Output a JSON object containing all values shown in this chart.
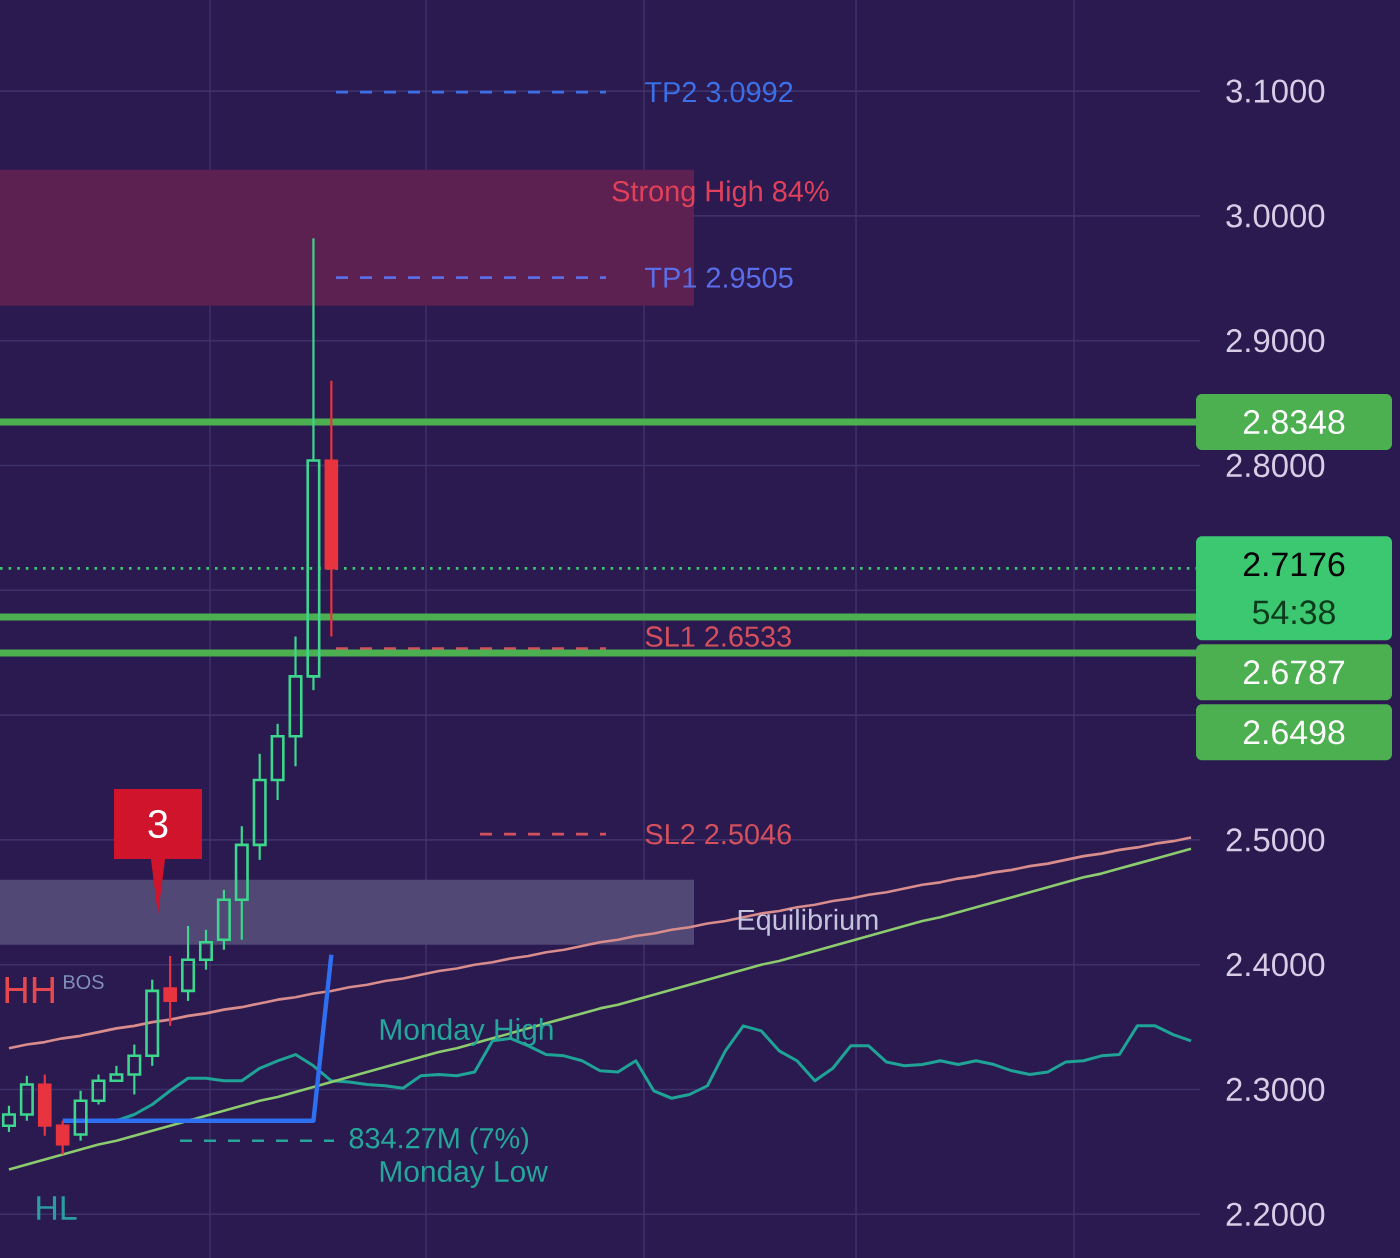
{
  "chart_data": {
    "type": "candlestick",
    "categories": [
      null,
      null,
      null,
      null,
      null,
      null,
      null,
      null,
      null,
      null,
      null,
      null,
      null,
      null,
      null,
      null,
      null,
      null,
      null,
      null,
      null,
      null,
      null,
      null,
      null,
      null,
      null,
      null,
      null,
      null,
      null,
      null,
      null,
      null,
      null,
      null,
      null,
      null,
      null,
      null,
      null,
      null,
      null,
      null,
      null,
      null,
      null,
      null,
      null,
      null,
      null,
      null,
      null,
      null,
      null,
      null,
      null,
      null,
      null,
      null,
      null,
      null,
      null,
      null,
      null,
      null,
      null
    ],
    "ohlc": [
      [
        2.271,
        2.287,
        2.266,
        2.28
      ],
      [
        2.28,
        2.311,
        2.275,
        2.304
      ],
      [
        2.304,
        2.312,
        2.263,
        2.271
      ],
      [
        2.271,
        2.275,
        2.248,
        2.256
      ],
      [
        2.264,
        2.299,
        2.259,
        2.291
      ],
      [
        2.291,
        2.312,
        2.288,
        2.307
      ],
      [
        2.307,
        2.319,
        2.306,
        2.312
      ],
      [
        2.312,
        2.336,
        2.296,
        2.327
      ],
      [
        2.327,
        2.388,
        2.319,
        2.379
      ],
      [
        2.381,
        2.407,
        2.351,
        2.371
      ],
      [
        2.379,
        2.431,
        2.371,
        2.404
      ],
      [
        2.404,
        2.428,
        2.396,
        2.418
      ],
      [
        2.42,
        2.46,
        2.412,
        2.452
      ],
      [
        2.452,
        2.511,
        2.42,
        2.496
      ],
      [
        2.496,
        2.569,
        2.484,
        2.548
      ],
      [
        2.548,
        2.593,
        2.532,
        2.583
      ],
      [
        2.583,
        2.663,
        2.559,
        2.631
      ],
      [
        2.631,
        2.982,
        2.62,
        2.804
      ],
      [
        2.804,
        2.868,
        2.663,
        2.7176
      ],
      null,
      null,
      null,
      null,
      null,
      null,
      null,
      null,
      null,
      null,
      null,
      null,
      null,
      null,
      null,
      null,
      null,
      null,
      null,
      null,
      null,
      null,
      null,
      null,
      null,
      null,
      null,
      null,
      null,
      null,
      null,
      null,
      null,
      null,
      null,
      null,
      null,
      null,
      null,
      null,
      null,
      null,
      null,
      null,
      null,
      null,
      null,
      null
    ],
    "colors": [
      "#3DD68C",
      "#3DD68C",
      "#E8343F",
      "#E8343F",
      "#3DD68C",
      "#3DD68C",
      "#3DD68C",
      "#3DD68C",
      "#3DD68C",
      "#E8343F",
      "#3DD68C",
      "#3DD68C",
      "#3DD68C",
      "#3DD68C",
      "#3DD68C",
      "#3DD68C",
      "#3DD68C",
      "#3DD68C",
      "#E8343F",
      null,
      null,
      null,
      null,
      null,
      null,
      null,
      null,
      null,
      null,
      null,
      null,
      null,
      null,
      null,
      null,
      null,
      null,
      null,
      null,
      null,
      null,
      null,
      null,
      null,
      null,
      null,
      null,
      null,
      null,
      null,
      null,
      null,
      null,
      null,
      null,
      null,
      null,
      null,
      null,
      null,
      null,
      null,
      null,
      null,
      null,
      null,
      null
    ],
    "series": [
      {
        "type": "line",
        "color": "#1FA396",
        "values": [
          null,
          null,
          null,
          null,
          null,
          null,
          2.275,
          2.28,
          2.288,
          2.299,
          2.309,
          2.309,
          2.307,
          2.307,
          2.317,
          2.323,
          2.328,
          2.319,
          2.307,
          2.306,
          2.304,
          2.303,
          2.301,
          2.311,
          2.312,
          2.311,
          2.314,
          2.339,
          2.341,
          2.335,
          2.328,
          2.327,
          2.323,
          2.315,
          2.314,
          2.323,
          2.299,
          2.293,
          2.296,
          2.303,
          2.331,
          2.351,
          2.347,
          2.331,
          2.323,
          2.307,
          2.317,
          2.335,
          2.335,
          2.322,
          2.319,
          2.32,
          2.323,
          2.32,
          2.323,
          2.32,
          2.315,
          2.312,
          2.314,
          2.322,
          2.323,
          2.327,
          2.328,
          2.351,
          2.351,
          2.344,
          2.339
        ]
      },
      {
        "type": "line",
        "color": "#D98C8C",
        "values": [
          2.333,
          2.336,
          2.338,
          2.341,
          2.343,
          2.346,
          2.349,
          2.351,
          2.354,
          2.356,
          2.359,
          2.361,
          2.364,
          2.366,
          2.369,
          2.372,
          2.374,
          2.377,
          2.379,
          2.382,
          2.384,
          2.387,
          2.389,
          2.392,
          2.395,
          2.397,
          2.4,
          2.402,
          2.405,
          2.407,
          2.41,
          2.412,
          2.415,
          2.418,
          2.42,
          2.423,
          2.425,
          2.428,
          2.43,
          2.433,
          2.435,
          2.438,
          2.441,
          2.443,
          2.446,
          2.448,
          2.451,
          2.453,
          2.456,
          2.458,
          2.461,
          2.464,
          2.466,
          2.469,
          2.471,
          2.474,
          2.476,
          2.479,
          2.481,
          2.484,
          2.487,
          2.489,
          2.492,
          2.494,
          2.497,
          2.499,
          2.502
        ]
      },
      {
        "type": "line",
        "color": "#8CCB6E",
        "values": [
          2.236,
          2.24,
          2.244,
          2.248,
          2.252,
          2.256,
          2.259,
          2.263,
          2.267,
          2.271,
          2.275,
          2.279,
          2.283,
          2.287,
          2.291,
          2.294,
          2.298,
          2.302,
          2.306,
          2.31,
          2.314,
          2.318,
          2.322,
          2.326,
          2.33,
          2.333,
          2.337,
          2.341,
          2.345,
          2.349,
          2.353,
          2.357,
          2.361,
          2.365,
          2.368,
          2.372,
          2.376,
          2.38,
          2.384,
          2.388,
          2.392,
          2.396,
          2.4,
          2.403,
          2.407,
          2.411,
          2.415,
          2.419,
          2.423,
          2.427,
          2.431,
          2.435,
          2.438,
          2.442,
          2.446,
          2.45,
          2.454,
          2.458,
          2.462,
          2.466,
          2.47,
          2.473,
          2.477,
          2.481,
          2.485,
          2.489,
          2.493
        ]
      },
      {
        "type": "line",
        "color": "#2F6FF2",
        "values": [
          null,
          null,
          null,
          2.275,
          2.275,
          2.275,
          2.275,
          2.275,
          2.275,
          2.275,
          2.275,
          2.275,
          2.275,
          2.275,
          2.275,
          2.275,
          2.275,
          2.275,
          2.408,
          null,
          null,
          null,
          null,
          null,
          null,
          null,
          null,
          null,
          null,
          null,
          null,
          null,
          null,
          null,
          null,
          null,
          null,
          null,
          null,
          null,
          null,
          null,
          null,
          null,
          null,
          null,
          null,
          null,
          null,
          null,
          null,
          null,
          null,
          null,
          null,
          null,
          null,
          null,
          null,
          null,
          null,
          null,
          null,
          null,
          null,
          null,
          null
        ]
      }
    ],
    "ylim": [
      2.165,
      3.173
    ],
    "yticks": [
      {
        "value": 2.2,
        "label": "2.2000"
      },
      {
        "value": 2.3,
        "label": "2.3000"
      },
      {
        "value": 2.4,
        "label": "2.4000"
      },
      {
        "value": 2.5,
        "label": "2.5000"
      },
      {
        "value": 2.6,
        "label": null
      },
      {
        "value": 2.7,
        "label": null
      },
      {
        "value": 2.8,
        "label": "2.8000"
      },
      {
        "value": 2.9,
        "label": "2.9000"
      },
      {
        "value": 3.0,
        "label": "3.0000"
      },
      {
        "value": 3.1,
        "label": "3.1000"
      }
    ],
    "grid": true,
    "bands": [
      {
        "axis": "y",
        "from": 2.928,
        "to": 3.037,
        "label": "Strong High 84%",
        "color": "#5C2150"
      },
      {
        "axis": "y",
        "from": 2.416,
        "to": 2.468,
        "label": "Equilibrium",
        "color": "#514876"
      }
    ],
    "ref_lines": [
      {
        "axis": "y",
        "value": 3.0992,
        "label": "TP2 3.0992",
        "color": "#3B6FE6",
        "line_style": "dashed"
      },
      {
        "axis": "y",
        "value": 2.9505,
        "label": "TP1 2.9505",
        "color": "#5A6EEA",
        "line_style": "dashed"
      },
      {
        "axis": "y",
        "value": 2.6533,
        "label": "SL1 2.6533",
        "color": "#D4505C",
        "line_style": "dashed"
      },
      {
        "axis": "y",
        "value": 2.5046,
        "label": "SL2 2.5046",
        "color": "#D4505C",
        "line_style": "dashed"
      },
      {
        "axis": "y",
        "value": 2.8348,
        "label": "2.8348",
        "color": "#4CAF50",
        "line_style": "solid"
      },
      {
        "axis": "y",
        "value": 2.7176,
        "label": "2.7176",
        "color": "#3CC870",
        "line_style": "dotted"
      },
      {
        "axis": "y",
        "value": 2.6787,
        "label": "2.6787",
        "color": "#4CAF50",
        "line_style": "solid"
      },
      {
        "axis": "y",
        "value": 2.6498,
        "label": "2.6498",
        "color": "#4CAF50",
        "line_style": "solid"
      },
      {
        "axis": "y",
        "value": 2.259,
        "label": "834.27M (7%)",
        "color": "#26A69A",
        "line_style": "dashed"
      }
    ],
    "annotations": [
      "3",
      "HH",
      "BOS",
      "HL",
      "Monday High",
      "Monday Low",
      "54:38"
    ]
  }
}
